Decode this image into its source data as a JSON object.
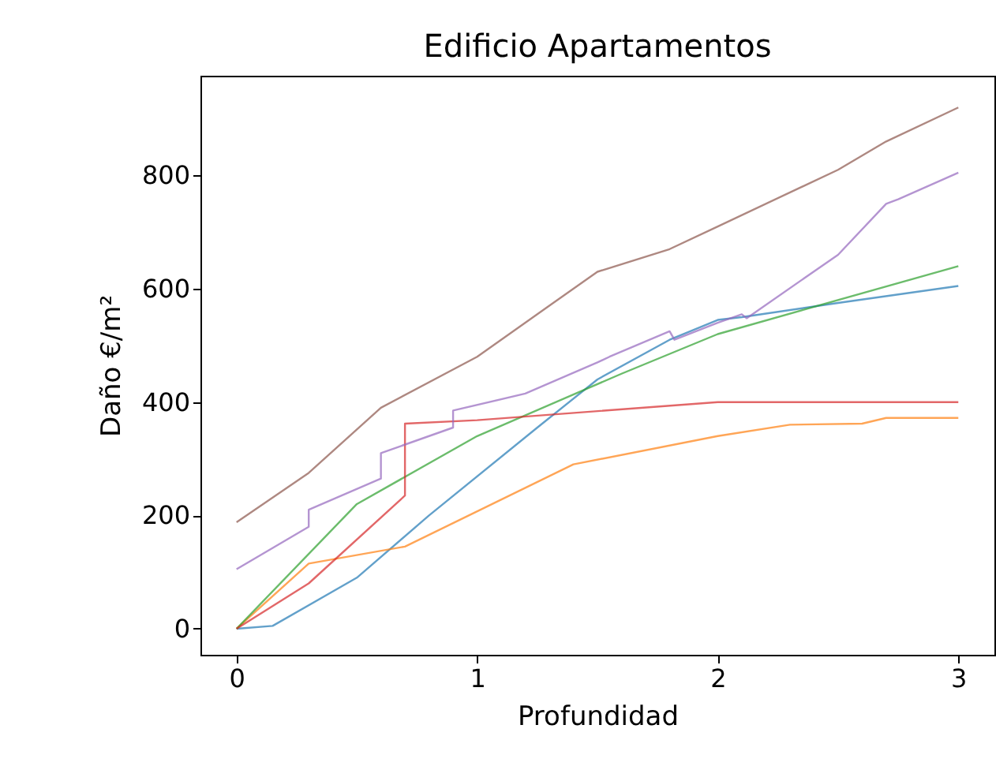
{
  "chart_data": {
    "type": "line",
    "title": "Edificio Apartamentos",
    "xlabel": "Profundidad",
    "ylabel": "Daño €/m²",
    "xlim": [
      -0.15,
      3.15
    ],
    "xticks": [
      0,
      1,
      2,
      3
    ],
    "ylim": [
      -46,
      976
    ],
    "yticks": [
      0,
      200,
      400,
      600,
      800
    ],
    "grid": false,
    "marker": "none",
    "line_style": "solid",
    "series": [
      {
        "color": "#1f77b4",
        "x": [
          0,
          0.15,
          0.5,
          0.8,
          1.25,
          1.5,
          1.8,
          2.0,
          2.1,
          2.5,
          3.0
        ],
        "values": [
          0,
          5,
          90,
          200,
          355,
          440,
          510,
          545,
          550,
          575,
          605
        ]
      },
      {
        "color": "#ff7f0e",
        "x": [
          0,
          0.3,
          0.7,
          1.4,
          2.0,
          2.3,
          2.6,
          2.7,
          3.0
        ],
        "values": [
          0,
          115,
          145,
          290,
          340,
          360,
          362,
          372,
          372
        ]
      },
      {
        "color": "#2ca02c",
        "x": [
          0,
          0.5,
          1.0,
          1.6,
          2.0,
          3.0
        ],
        "values": [
          0,
          220,
          340,
          450,
          520,
          640
        ]
      },
      {
        "color": "#d62728",
        "x": [
          0,
          0.3,
          0.7,
          0.7,
          1.0,
          2.0,
          3.0
        ],
        "values": [
          0,
          80,
          235,
          362,
          368,
          400,
          400
        ]
      },
      {
        "color": "#9467bd",
        "x": [
          0,
          0.3,
          0.3,
          0.6,
          0.6,
          0.9,
          0.9,
          1.2,
          1.5,
          1.55,
          1.8,
          1.82,
          2.0,
          2.1,
          2.12,
          2.5,
          2.7,
          2.75,
          3.0
        ],
        "values": [
          105,
          180,
          210,
          265,
          310,
          355,
          385,
          415,
          470,
          480,
          525,
          510,
          540,
          555,
          548,
          660,
          750,
          758,
          805
        ]
      },
      {
        "color": "#8c564b",
        "x": [
          0,
          0.3,
          0.6,
          1.0,
          1.3,
          1.5,
          1.8,
          2.0,
          2.5,
          2.7,
          3.0
        ],
        "values": [
          188,
          275,
          390,
          480,
          570,
          630,
          670,
          710,
          810,
          860,
          920
        ]
      }
    ]
  }
}
